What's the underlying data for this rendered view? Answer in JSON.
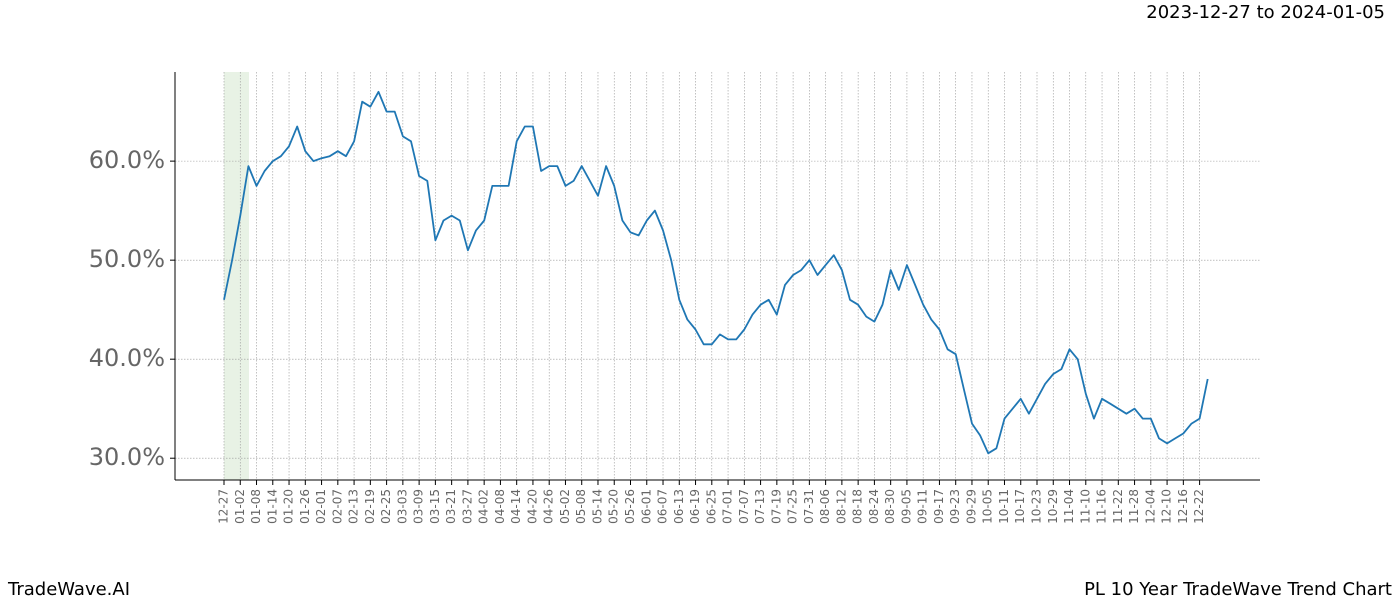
{
  "chart_data": {
    "type": "line",
    "title": "2023-12-27 to 2024-01-05",
    "brand": "TradeWave.AI",
    "caption": "PL 10 Year TradeWave Trend Chart",
    "x": [
      "12-27",
      "12-30",
      "01-02",
      "01-05",
      "01-08",
      "01-11",
      "01-14",
      "01-17",
      "01-20",
      "01-23",
      "01-26",
      "01-29",
      "02-01",
      "02-04",
      "02-07",
      "02-10",
      "02-13",
      "02-16",
      "02-19",
      "02-22",
      "02-25",
      "02-28",
      "03-03",
      "03-06",
      "03-09",
      "03-12",
      "03-15",
      "03-18",
      "03-21",
      "03-24",
      "03-27",
      "03-30",
      "04-02",
      "04-05",
      "04-08",
      "04-11",
      "04-14",
      "04-17",
      "04-20",
      "04-23",
      "04-26",
      "04-29",
      "05-02",
      "05-05",
      "05-08",
      "05-11",
      "05-14",
      "05-17",
      "05-20",
      "05-23",
      "05-26",
      "05-29",
      "06-01",
      "06-04",
      "06-07",
      "06-10",
      "06-13",
      "06-16",
      "06-19",
      "06-22",
      "06-25",
      "06-28",
      "07-01",
      "07-04",
      "07-07",
      "07-10",
      "07-13",
      "07-16",
      "07-19",
      "07-22",
      "07-25",
      "07-28",
      "07-31",
      "08-03",
      "08-06",
      "08-09",
      "08-12",
      "08-15",
      "08-18",
      "08-21",
      "08-24",
      "08-27",
      "08-30",
      "09-02",
      "09-05",
      "09-08",
      "09-11",
      "09-14",
      "09-17",
      "09-20",
      "09-23",
      "09-26",
      "09-29",
      "10-02",
      "10-05",
      "10-08",
      "10-11",
      "10-14",
      "10-17",
      "10-20",
      "10-23",
      "10-26",
      "10-29",
      "11-01",
      "11-04",
      "11-07",
      "11-10",
      "11-13",
      "11-16",
      "11-19",
      "11-22",
      "11-25",
      "11-28",
      "12-01",
      "12-04",
      "12-07",
      "12-10",
      "12-13",
      "12-16",
      "12-19",
      "12-22",
      "12-25"
    ],
    "values": [
      46,
      50,
      54.5,
      59.5,
      57.5,
      59,
      60,
      60.5,
      61.5,
      63.5,
      61,
      60,
      60.3,
      60.5,
      61,
      60.5,
      62,
      66,
      65.5,
      67,
      65,
      65,
      62.5,
      62,
      58.5,
      58,
      52,
      54,
      54.5,
      54,
      51,
      53,
      54,
      57.5,
      57.5,
      57.5,
      62,
      63.5,
      63.5,
      59,
      59.5,
      59.5,
      57.5,
      58,
      59.5,
      58,
      56.5,
      59.5,
      57.5,
      54,
      52.8,
      52.5,
      54,
      55,
      53,
      50,
      46,
      44,
      43,
      41.5,
      41.5,
      42.5,
      42,
      42,
      43,
      44.5,
      45.5,
      46,
      44.5,
      47.5,
      48.5,
      49,
      50,
      48.5,
      49.5,
      50.5,
      49,
      46,
      45.5,
      44.3,
      43.8,
      45.5,
      49,
      47,
      49.5,
      47.5,
      45.5,
      44,
      43,
      41,
      40.5,
      37,
      33.5,
      32.3,
      30.5,
      31,
      34,
      35,
      36,
      34.5,
      36,
      37.5,
      38.5,
      39,
      41,
      40,
      36.5,
      34,
      36,
      35.5,
      35,
      34.5,
      35,
      34,
      34,
      32,
      31.5,
      32,
      32.5,
      33.5,
      34,
      38
    ],
    "color": "#1f77b4",
    "ylim": [
      27.8,
      69
    ],
    "yticks": [
      {
        "value": 30,
        "label": "30.0%"
      },
      {
        "value": 40,
        "label": "40.0%"
      },
      {
        "value": 50,
        "label": "50.0%"
      },
      {
        "value": 60,
        "label": "60.0%"
      }
    ],
    "grid": true
  }
}
